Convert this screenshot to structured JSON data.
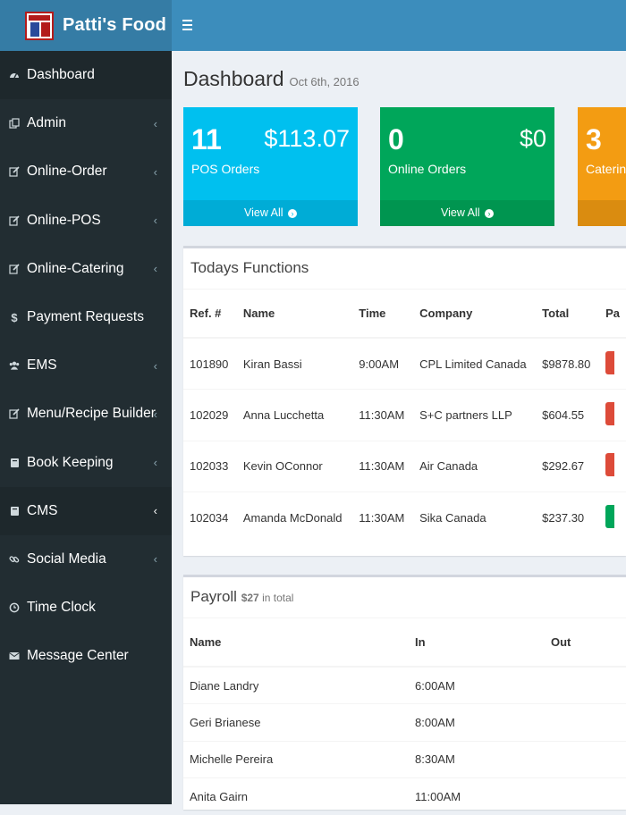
{
  "brand": {
    "name": "Patti's Food"
  },
  "sidebar": {
    "items": [
      {
        "label": "Dashboard",
        "icon": "dashboard-icon",
        "chev": false
      },
      {
        "label": "Admin",
        "icon": "copy-icon",
        "chev": true
      },
      {
        "label": "Online-Order",
        "icon": "edit-icon",
        "chev": true
      },
      {
        "label": "Online-POS",
        "icon": "edit-icon",
        "chev": true
      },
      {
        "label": "Online-Catering",
        "icon": "edit-icon",
        "chev": true
      },
      {
        "label": "Payment Requests",
        "icon": "dollar-icon",
        "chev": false
      },
      {
        "label": "EMS",
        "icon": "users-icon",
        "chev": true
      },
      {
        "label": "Menu/Recipe Builder",
        "icon": "edit-icon",
        "chev": true
      },
      {
        "label": "Book Keeping",
        "icon": "book-icon",
        "chev": true
      },
      {
        "label": "CMS",
        "icon": "book-icon",
        "chev": true
      },
      {
        "label": "Social Media",
        "icon": "link-icon",
        "chev": true
      },
      {
        "label": "Time Clock",
        "icon": "clock-icon",
        "chev": false
      },
      {
        "label": "Message Center",
        "icon": "envelope-icon",
        "chev": false
      }
    ],
    "chevron": "‹"
  },
  "page": {
    "title": "Dashboard",
    "date": "Oct 6th, 2016"
  },
  "stats": [
    {
      "count": "11",
      "amount": "$113.07",
      "label": "POS Orders",
      "footer": "View All",
      "color": "#00c0ef"
    },
    {
      "count": "0",
      "amount": "$0",
      "label": "Online Orders",
      "footer": "View All",
      "color": "#00a65a"
    },
    {
      "count": "3",
      "amount": "",
      "label": "Catering",
      "footer": "",
      "color": "#f39c12"
    }
  ],
  "functions": {
    "title": "Todays Functions",
    "headers": [
      "Ref. #",
      "Name",
      "Time",
      "Company",
      "Total",
      "Pa"
    ],
    "rows": [
      {
        "ref": "101890",
        "name": "Kiran Bassi",
        "time": "9:00AM",
        "company": "CPL Limited Canada",
        "total": "$9878.80",
        "status": "red"
      },
      {
        "ref": "102029",
        "name": "Anna Lucchetta",
        "time": "11:30AM",
        "company": "S+C partners LLP",
        "total": "$604.55",
        "status": "red"
      },
      {
        "ref": "102033",
        "name": "Kevin OConnor",
        "time": "11:30AM",
        "company": "Air Canada",
        "total": "$292.67",
        "status": "red"
      },
      {
        "ref": "102034",
        "name": "Amanda McDonald",
        "time": "11:30AM",
        "company": "Sika Canada",
        "total": "$237.30",
        "status": "green"
      }
    ]
  },
  "payroll": {
    "title": "Payroll",
    "total": "$27",
    "total_suffix": "in total",
    "headers": [
      "Name",
      "In",
      "Out"
    ],
    "rows": [
      {
        "name": "Diane Landry",
        "in": "6:00AM",
        "out": ""
      },
      {
        "name": "Geri Brianese",
        "in": "8:00AM",
        "out": ""
      },
      {
        "name": "Michelle Pereira",
        "in": "8:30AM",
        "out": ""
      },
      {
        "name": "Anita Gairn",
        "in": "11:00AM",
        "out": ""
      }
    ]
  }
}
